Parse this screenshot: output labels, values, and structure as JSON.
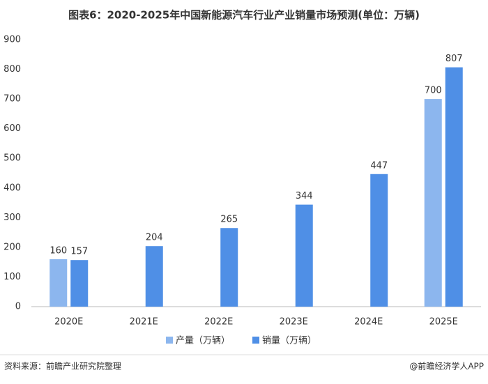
{
  "chart_data": {
    "type": "bar",
    "title": "图表6：2020-2025年中国新能源汽车行业产业销量市场预测(单位：万辆)",
    "categories": [
      "2020E",
      "2021E",
      "2022E",
      "2023E",
      "2024E",
      "2025E"
    ],
    "series": [
      {
        "name": "产量（万辆）",
        "color": "#8cb6ee",
        "values": [
          160,
          null,
          null,
          null,
          null,
          700
        ]
      },
      {
        "name": "销量（万辆）",
        "color": "#4f8fe6",
        "values": [
          157,
          204,
          265,
          344,
          447,
          807
        ]
      }
    ],
    "ylim": [
      0,
      900
    ],
    "yticks": [
      0,
      100,
      200,
      300,
      400,
      500,
      600,
      700,
      800,
      900
    ],
    "grid": false,
    "legend": "bottom",
    "source": "资料来源：前瞻产业研究院整理",
    "credit": "@前瞻经济学人APP"
  }
}
